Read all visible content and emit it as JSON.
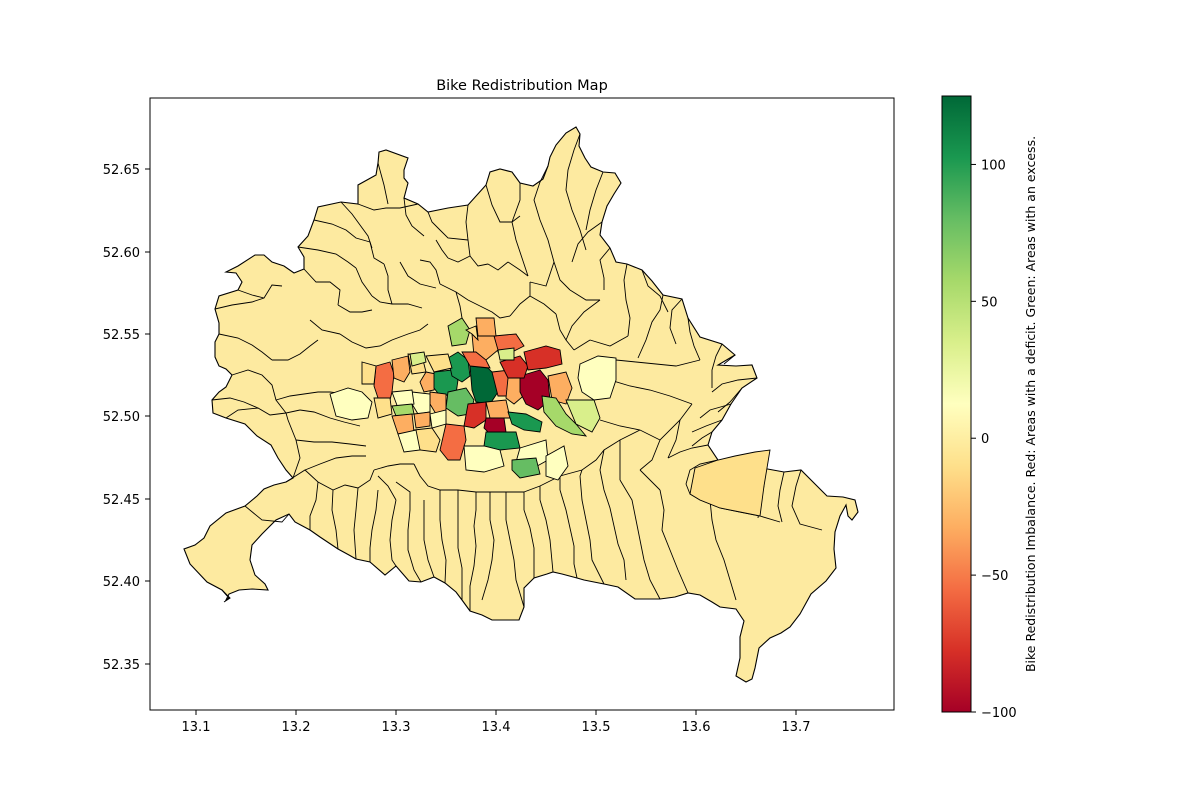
{
  "title": "Bike Redistribution Map",
  "x_ticks": [
    "13.1",
    "13.2",
    "13.3",
    "13.4",
    "13.5",
    "13.6",
    "13.7"
  ],
  "y_ticks": [
    "52.35",
    "52.40",
    "52.45",
    "52.50",
    "52.55",
    "52.60",
    "52.65"
  ],
  "x_range": [
    13.055,
    13.825
  ],
  "y_range": [
    52.322,
    52.692
  ],
  "colorbar": {
    "label": "Bike Redistribution Imbalance. Red: Areas with a deficit. Green: Areas with an excess.",
    "ticks": [
      "−100",
      "−50",
      "0",
      "50",
      "100"
    ],
    "tick_values": [
      -100,
      -50,
      0,
      50,
      100
    ],
    "min": -100,
    "max": 125,
    "colormap": "RdYlGn",
    "stops": [
      "#a50026",
      "#d73027",
      "#f46d43",
      "#fdae61",
      "#fee08b",
      "#ffffbf",
      "#d9ef8b",
      "#a6d96a",
      "#66bd63",
      "#1a9850",
      "#006837"
    ]
  },
  "colors": {
    "neutral_fill": "#fdeaa0",
    "outline": "#000000"
  }
}
